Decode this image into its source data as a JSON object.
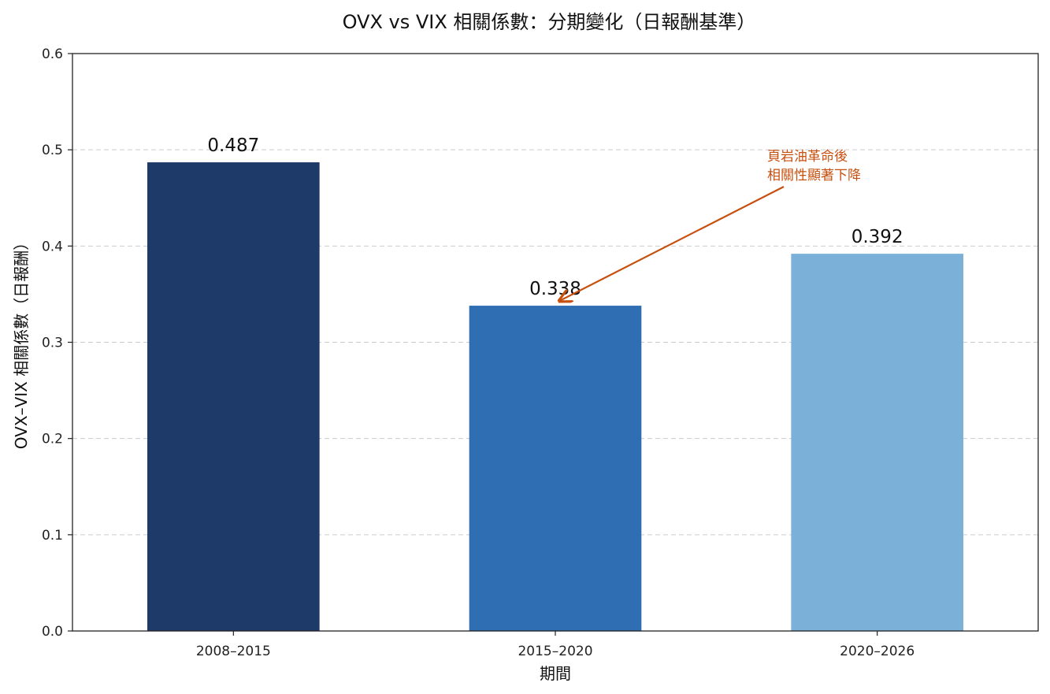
{
  "chart_data": {
    "type": "bar",
    "title": "OVX vs VIX 相關係數：分期變化（日報酬基準）",
    "xlabel": "期間",
    "ylabel": "OVX–VIX 相關係數（日報酬）",
    "categories": [
      "2008–2015",
      "2015–2020",
      "2020–2026"
    ],
    "values": [
      0.487,
      0.338,
      0.392
    ],
    "value_labels": [
      "0.487",
      "0.338",
      "0.392"
    ],
    "bar_colors": [
      "#1d3a68",
      "#2f6eb3",
      "#7bb1d8"
    ],
    "ylim": [
      0,
      0.6
    ],
    "yticks": [
      0.0,
      0.1,
      0.2,
      0.3,
      0.4,
      0.5,
      0.6
    ],
    "ytick_labels": [
      "0.0",
      "0.1",
      "0.2",
      "0.3",
      "0.4",
      "0.5",
      "0.6"
    ],
    "grid": "y-dashed",
    "annotation": {
      "lines": [
        "頁岩油革命後",
        "相關性顯著下降"
      ],
      "target_category": "2015–2020",
      "color": "#c8500f"
    }
  }
}
